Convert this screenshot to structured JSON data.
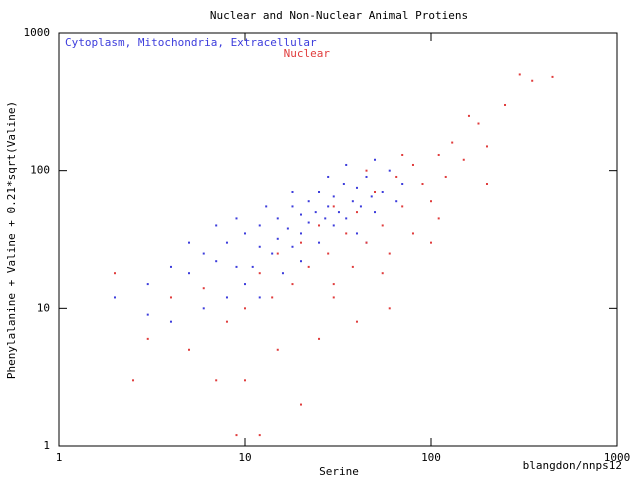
{
  "chart_data": {
    "type": "scatter",
    "title": "Nuclear and Non-Nuclear Animal Protiens",
    "x_label": "Serine",
    "y_label": "Phenylalanine + Valine + 0.21*sqrt(Valine)",
    "annotation": "blangdon/nnps12",
    "log_x": true,
    "log_y": true,
    "xlim": [
      1,
      1000
    ],
    "ylim": [
      1,
      1000
    ],
    "xticks": [
      1,
      10,
      100,
      1000
    ],
    "yticks": [
      1,
      10,
      100,
      1000
    ],
    "series": [
      {
        "name": "Cytoplasm, Mitochondria, Extracellular",
        "color": "#3c3cdc",
        "x": [
          2,
          3,
          4,
          5,
          6,
          7,
          8,
          9,
          10,
          10,
          12,
          12,
          14,
          15,
          15,
          17,
          18,
          18,
          20,
          20,
          22,
          22,
          24,
          25,
          25,
          27,
          28,
          30,
          30,
          32,
          34,
          35,
          38,
          40,
          40,
          42,
          45,
          48,
          50,
          55,
          60,
          65,
          70,
          8,
          11,
          13,
          6,
          4,
          16,
          20,
          28,
          45,
          35,
          50,
          9,
          5,
          3,
          12,
          7,
          18
        ],
        "values": [
          12,
          15,
          20,
          18,
          25,
          22,
          30,
          20,
          35,
          15,
          28,
          40,
          25,
          45,
          32,
          38,
          55,
          28,
          48,
          35,
          60,
          42,
          50,
          30,
          70,
          45,
          55,
          40,
          65,
          50,
          80,
          45,
          60,
          35,
          75,
          55,
          90,
          65,
          50,
          70,
          100,
          60,
          80,
          12,
          20,
          55,
          10,
          8,
          18,
          22,
          90,
          30,
          110,
          120,
          45,
          30,
          9,
          12,
          40,
          70
        ]
      },
      {
        "name": "Nuclear",
        "color": "#e03c3c",
        "x": [
          2,
          2.5,
          3,
          4,
          5,
          6,
          8,
          9,
          10,
          12,
          14,
          15,
          18,
          20,
          22,
          25,
          28,
          30,
          30,
          35,
          38,
          40,
          45,
          50,
          55,
          60,
          65,
          70,
          80,
          80,
          90,
          100,
          110,
          120,
          130,
          150,
          160,
          200,
          250,
          300,
          350,
          450,
          200,
          60,
          40,
          25,
          15,
          10,
          20,
          7,
          100,
          70,
          45,
          110,
          12,
          180,
          30,
          55
        ],
        "values": [
          18,
          3,
          6,
          12,
          5,
          14,
          8,
          1.2,
          10,
          18,
          12,
          25,
          15,
          30,
          20,
          40,
          25,
          15,
          55,
          35,
          20,
          50,
          30,
          70,
          40,
          25,
          90,
          55,
          35,
          110,
          80,
          60,
          130,
          90,
          160,
          120,
          250,
          150,
          300,
          500,
          450,
          480,
          80,
          10,
          8,
          6,
          5,
          3,
          2,
          3,
          30,
          130,
          100,
          45,
          1.2,
          220,
          12,
          18
        ]
      }
    ]
  }
}
